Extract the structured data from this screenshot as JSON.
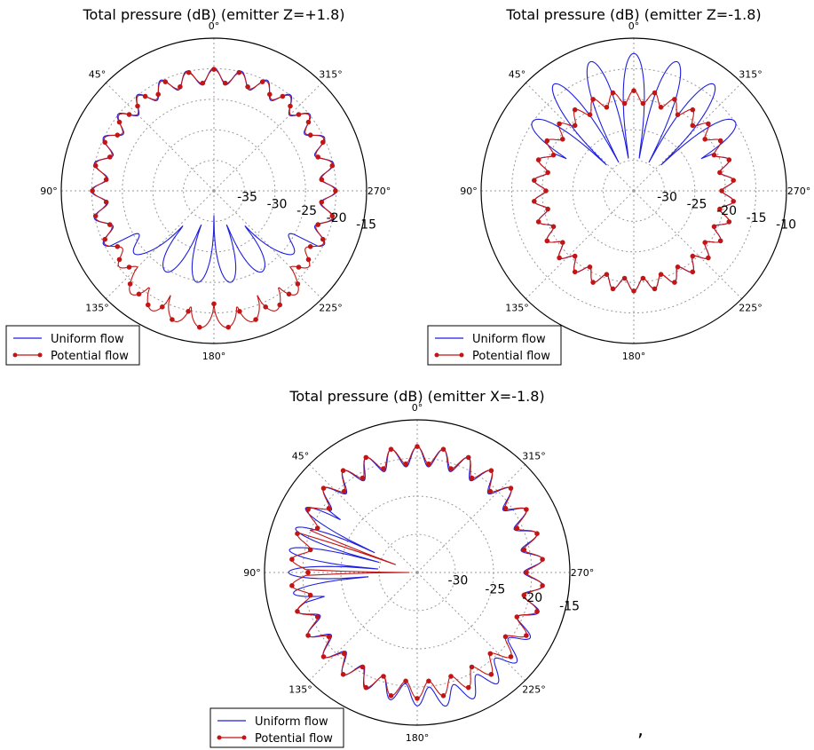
{
  "colors": {
    "uniform": "#1f1fe0",
    "potential": "#c21616",
    "grid": "#999999",
    "frame": "#000000"
  },
  "stray_mark": ",",
  "chart_data": [
    {
      "type": "polar-line",
      "title": "Total pressure (dB) (emitter Z=+1.8)",
      "angle_direction": "counterclockwise",
      "zero_location": "top",
      "angle_ticks": [
        "0°",
        "45°",
        "90°",
        "135°",
        "180°",
        "225°",
        "270°",
        "315°"
      ],
      "r_ticks": [
        "-35",
        "-30",
        "-25",
        "-20",
        "-15"
      ],
      "rlim": [
        -40,
        -15
      ],
      "grid": true,
      "legend": {
        "placement": "lower-left",
        "entries": [
          "Uniform flow",
          "Potential flow"
        ]
      },
      "series": [
        {
          "name": "Uniform flow",
          "style": "line",
          "base": -21.2,
          "ripple": 1.3,
          "ripple_lobes": 28,
          "lobed_sector": {
            "center_deg": 180,
            "half_width_deg": 62,
            "min": -36,
            "lobes": 6,
            "peak": -24.8
          }
        },
        {
          "name": "Potential flow",
          "style": "line-markers",
          "base": -21.2,
          "ripple": 1.1,
          "ripple_lobes": 28,
          "markers_every_deg": 6,
          "lobed_sector": {
            "center_deg": 180,
            "half_width_deg": 45,
            "min": -21.5,
            "lobes": 8,
            "peak": -17.5
          }
        }
      ]
    },
    {
      "type": "polar-line",
      "title": "Total pressure (dB) (emitter Z=-1.8)",
      "angle_direction": "counterclockwise",
      "zero_location": "top",
      "angle_ticks": [
        "0°",
        "45°",
        "90°",
        "135°",
        "180°",
        "225°",
        "270°",
        "315°"
      ],
      "r_ticks": [
        "-30",
        "-25",
        "-20",
        "-15",
        "-10"
      ],
      "rlim": [
        -35,
        -10
      ],
      "grid": true,
      "legend": {
        "placement": "lower-left",
        "entries": [
          "Uniform flow",
          "Potential flow"
        ]
      },
      "series": [
        {
          "name": "Uniform flow",
          "style": "line",
          "base": -19.6,
          "ripple": 1.0,
          "ripple_lobes": 30,
          "lobed_sector": {
            "center_deg": 0,
            "half_width_deg": 65,
            "min": -33,
            "lobes": 7,
            "peak": -12.5
          }
        },
        {
          "name": "Potential flow",
          "style": "line-markers",
          "base": -19.6,
          "ripple": 1.0,
          "ripple_lobes": 30,
          "markers_every_deg": 6
        }
      ]
    },
    {
      "type": "polar-line",
      "title": "Total pressure (dB) (emitter X=-1.8)",
      "angle_direction": "counterclockwise",
      "zero_location": "top",
      "angle_ticks": [
        "0°",
        "45°",
        "90°",
        "135°",
        "180°",
        "225°",
        "270°",
        "315°"
      ],
      "r_ticks": [
        "-30",
        "-25",
        "-20",
        "-15"
      ],
      "rlim": [
        -35,
        -15
      ],
      "grid": true,
      "legend": {
        "placement": "lower-left",
        "entries": [
          "Uniform flow",
          "Potential flow"
        ]
      },
      "series": [
        {
          "name": "Uniform flow",
          "style": "line",
          "base": -19.8,
          "ripple": 1.3,
          "ripple_lobes": 30,
          "lobed_sector": {
            "center_deg": 80,
            "half_width_deg": 25,
            "min": -30,
            "lobes": 5,
            "peak": -18
          },
          "bump": {
            "center_deg": 205,
            "width_deg": 25,
            "amount": 1.6
          }
        },
        {
          "name": "Potential flow",
          "style": "line-markers",
          "base": -19.6,
          "ripple": 1.1,
          "ripple_lobes": 30,
          "markers_every_deg": 6,
          "spikes": [
            {
              "angle_deg": 90,
              "min": -34
            },
            {
              "angle_deg": 70,
              "min": -32
            }
          ]
        }
      ]
    }
  ]
}
